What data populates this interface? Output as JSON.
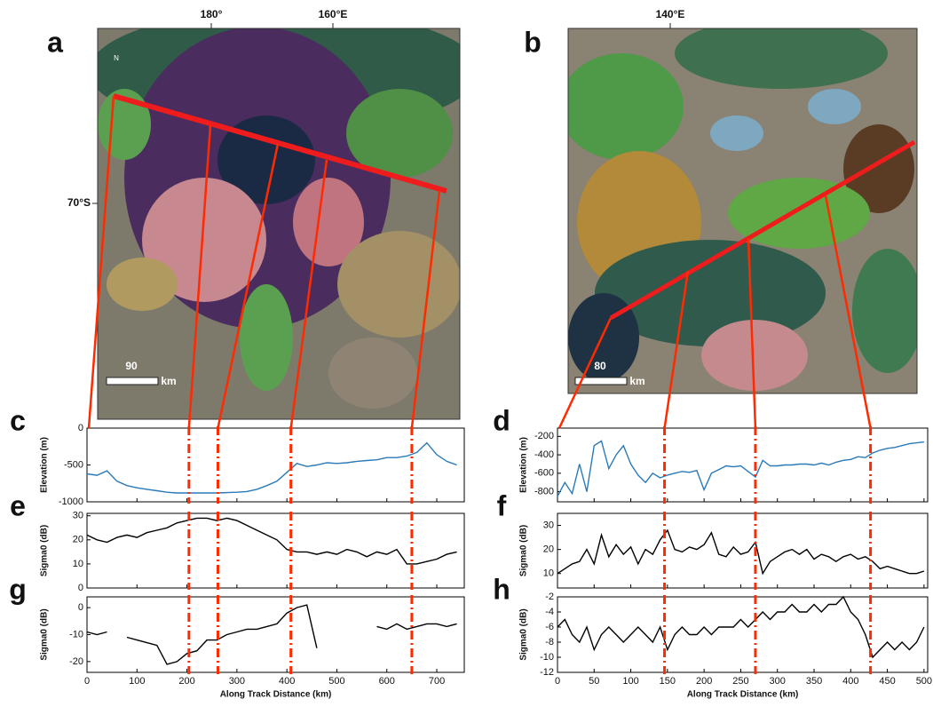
{
  "maps": [
    {
      "label": "a",
      "lon_labels": [
        "180°",
        "160°E"
      ],
      "lat_label": "70°S",
      "north": "N",
      "scale": "90",
      "scale_unit": "km"
    },
    {
      "label": "b",
      "lon_labels": [
        "140°E"
      ],
      "scale": "80",
      "scale_unit": "km"
    }
  ],
  "chart_data": [
    {
      "type": "line",
      "label": "c",
      "ylabel": "Elevation (m)",
      "xlim": [
        0,
        755
      ],
      "xticks": [
        0,
        100,
        200,
        300,
        400,
        500,
        600,
        700
      ],
      "ylim": [
        -1000,
        0
      ],
      "yticks": [
        -1000,
        -500,
        0
      ],
      "markers": [
        204,
        262,
        408,
        650
      ],
      "marker_color": "#ff2a00",
      "x": [
        0,
        20,
        40,
        60,
        80,
        100,
        120,
        140,
        160,
        180,
        200,
        220,
        240,
        260,
        280,
        300,
        320,
        340,
        360,
        380,
        400,
        420,
        440,
        460,
        480,
        500,
        520,
        540,
        560,
        580,
        600,
        620,
        640,
        660,
        680,
        700,
        720,
        740
      ],
      "series": [
        {
          "color": "#2a7ab8",
          "values": [
            -620,
            -640,
            -580,
            -720,
            -780,
            -810,
            -830,
            -850,
            -870,
            -880,
            -880,
            -880,
            -880,
            -880,
            -875,
            -870,
            -860,
            -830,
            -780,
            -720,
            -600,
            -480,
            -520,
            -500,
            -470,
            -480,
            -470,
            -450,
            -440,
            -430,
            -400,
            -400,
            -380,
            -330,
            -200,
            -360,
            -450,
            -500
          ]
        }
      ]
    },
    {
      "type": "line",
      "label": "e",
      "ylabel": "Sigma0 (dB)",
      "xlim": [
        0,
        755
      ],
      "xticks": [
        0,
        100,
        200,
        300,
        400,
        500,
        600,
        700
      ],
      "ylim": [
        0,
        31
      ],
      "yticks": [
        0,
        10,
        20,
        30
      ],
      "markers": [
        204,
        262,
        408,
        650
      ],
      "marker_color": "#ff2a00",
      "x": [
        0,
        20,
        40,
        60,
        80,
        100,
        120,
        140,
        160,
        180,
        200,
        220,
        240,
        260,
        280,
        300,
        320,
        340,
        360,
        380,
        400,
        420,
        440,
        460,
        480,
        500,
        520,
        540,
        560,
        580,
        600,
        620,
        640,
        660,
        680,
        700,
        720,
        740
      ],
      "series": [
        {
          "color": "#000000",
          "values": [
            22,
            20,
            19,
            21,
            22,
            21,
            23,
            24,
            25,
            27,
            28,
            29,
            29,
            28,
            29,
            28,
            26,
            24,
            22,
            20,
            16,
            15,
            15,
            14,
            15,
            14,
            16,
            15,
            13,
            15,
            14,
            16,
            10,
            10,
            11,
            12,
            14,
            15
          ]
        }
      ]
    },
    {
      "type": "line",
      "label": "g",
      "ylabel": "Sigma0 (dB)",
      "xlabel": "Along Track Distance (km)",
      "xlim": [
        0,
        755
      ],
      "xticks": [
        0,
        100,
        200,
        300,
        400,
        500,
        600,
        700
      ],
      "ylim": [
        -24,
        4
      ],
      "yticks": [
        -20,
        -10,
        0
      ],
      "markers": [
        204,
        262,
        408,
        650
      ],
      "marker_color": "#ff2a00",
      "x": [
        0,
        20,
        40,
        60,
        80,
        100,
        120,
        140,
        160,
        180,
        200,
        220,
        240,
        260,
        280,
        300,
        320,
        340,
        360,
        380,
        400,
        420,
        440,
        460,
        480,
        500,
        520,
        540,
        560,
        580,
        600,
        620,
        640,
        660,
        680,
        700,
        720,
        740
      ],
      "series": [
        {
          "color": "#000000",
          "values": [
            -9,
            -10,
            -9,
            null,
            -11,
            -12,
            -13,
            -14,
            -21,
            -20,
            -17,
            -16,
            -12,
            -12,
            -10,
            -9,
            -8,
            -8,
            -7,
            -6,
            -2,
            0,
            1,
            -15,
            null,
            null,
            null,
            null,
            null,
            -7,
            -8,
            -6,
            -8,
            -7,
            -6,
            -6,
            -7,
            -6
          ]
        }
      ]
    },
    {
      "type": "line",
      "label": "d",
      "ylabel": "Elevation (m)",
      "xlim": [
        0,
        505
      ],
      "xticks": [
        0,
        50,
        100,
        150,
        200,
        250,
        300,
        350,
        400,
        450,
        500
      ],
      "ylim": [
        -910,
        -110
      ],
      "yticks": [
        -800,
        -600,
        -400,
        -200
      ],
      "markers": [
        146,
        270,
        427
      ],
      "marker_color": "#ff2a00",
      "x": [
        0,
        10,
        20,
        30,
        40,
        50,
        60,
        70,
        80,
        90,
        100,
        110,
        120,
        130,
        140,
        150,
        160,
        170,
        180,
        190,
        200,
        210,
        220,
        230,
        240,
        250,
        260,
        270,
        280,
        290,
        300,
        310,
        320,
        330,
        340,
        350,
        360,
        370,
        380,
        390,
        400,
        410,
        420,
        430,
        440,
        450,
        460,
        470,
        480,
        490,
        500
      ],
      "series": [
        {
          "color": "#2a7ab8",
          "values": [
            -850,
            -700,
            -820,
            -500,
            -800,
            -300,
            -250,
            -550,
            -400,
            -300,
            -500,
            -620,
            -700,
            -600,
            -650,
            -620,
            -600,
            -580,
            -590,
            -570,
            -780,
            -600,
            -560,
            -520,
            -530,
            -520,
            -580,
            -640,
            -460,
            -520,
            -520,
            -510,
            -510,
            -500,
            -500,
            -510,
            -490,
            -510,
            -480,
            -460,
            -450,
            -420,
            -430,
            -380,
            -350,
            -330,
            -320,
            -300,
            -280,
            -270,
            -260
          ]
        }
      ]
    },
    {
      "type": "line",
      "label": "f",
      "ylabel": "Sigma0 (dB)",
      "xlim": [
        0,
        505
      ],
      "xticks": [
        0,
        50,
        100,
        150,
        200,
        250,
        300,
        350,
        400,
        450,
        500
      ],
      "ylim": [
        4,
        35
      ],
      "yticks": [
        10,
        20,
        30
      ],
      "markers": [
        146,
        270,
        427
      ],
      "marker_color": "#ff2a00",
      "x": [
        0,
        10,
        20,
        30,
        40,
        50,
        60,
        70,
        80,
        90,
        100,
        110,
        120,
        130,
        140,
        150,
        160,
        170,
        180,
        190,
        200,
        210,
        220,
        230,
        240,
        250,
        260,
        270,
        280,
        290,
        300,
        310,
        320,
        330,
        340,
        350,
        360,
        370,
        380,
        390,
        400,
        410,
        420,
        430,
        440,
        450,
        460,
        470,
        480,
        490,
        500
      ],
      "series": [
        {
          "color": "#000000",
          "values": [
            10,
            12,
            14,
            15,
            20,
            14,
            26,
            17,
            22,
            18,
            21,
            14,
            20,
            18,
            24,
            28,
            20,
            19,
            21,
            20,
            22,
            27,
            18,
            17,
            21,
            18,
            19,
            23,
            10,
            15,
            17,
            19,
            20,
            18,
            20,
            16,
            18,
            17,
            15,
            17,
            18,
            16,
            17,
            15,
            12,
            13,
            12,
            11,
            10,
            10,
            11
          ]
        }
      ]
    },
    {
      "type": "line",
      "label": "h",
      "ylabel": "Sigma0 (dB)",
      "xlabel": "Along Track Distance (km)",
      "xlim": [
        0,
        505
      ],
      "xticks": [
        0,
        50,
        100,
        150,
        200,
        250,
        300,
        350,
        400,
        450,
        500
      ],
      "ylim": [
        -12,
        -2
      ],
      "yticks": [
        -12,
        -10,
        -8,
        -6,
        -4,
        -2
      ],
      "markers": [
        146,
        270,
        427
      ],
      "marker_color": "#ff2a00",
      "x": [
        0,
        10,
        20,
        30,
        40,
        50,
        60,
        70,
        80,
        90,
        100,
        110,
        120,
        130,
        140,
        150,
        160,
        170,
        180,
        190,
        200,
        210,
        220,
        230,
        240,
        250,
        260,
        270,
        280,
        290,
        300,
        310,
        320,
        330,
        340,
        350,
        360,
        370,
        380,
        390,
        400,
        410,
        420,
        430,
        440,
        450,
        460,
        470,
        480,
        490,
        500
      ],
      "series": [
        {
          "color": "#000000",
          "values": [
            -6,
            -5,
            -7,
            -8,
            -6,
            -9,
            -7,
            -6,
            -7,
            -8,
            -7,
            -6,
            -7,
            -8,
            -6,
            -9,
            -7,
            -6,
            -7,
            -7,
            -6,
            -7,
            -6,
            -6,
            -6,
            -5,
            -6,
            -5,
            -4,
            -5,
            -4,
            -4,
            -3,
            -4,
            -4,
            -3,
            -4,
            -3,
            -3,
            -2,
            -4,
            -5,
            -7,
            -10,
            -9,
            -8,
            -9,
            -8,
            -9,
            -8,
            -6
          ]
        }
      ]
    }
  ]
}
